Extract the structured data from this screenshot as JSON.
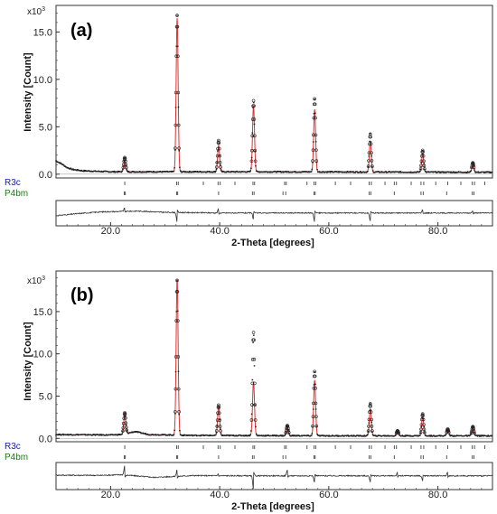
{
  "colors": {
    "observed": "#222222",
    "calculated": "#e03030",
    "R3c": "#1a1aa8",
    "P4bm": "#1a7a1a",
    "axis": "#333333"
  },
  "chart_data": [
    {
      "type": "line",
      "panel_label": "(a)",
      "xlabel": "2-Theta [degrees]",
      "ylabel": "Intensity [Count]",
      "y_multiplier": "x10^3",
      "y_multiplier_base": "x10",
      "y_multiplier_exp": "3",
      "xlim": [
        10,
        90
      ],
      "ylim": [
        -0.4,
        17.8
      ],
      "x_ticks": [
        "20.0",
        "40.0",
        "60.0",
        "80.0"
      ],
      "y_ticks": [
        "0.0",
        "5.0",
        "10.0",
        "15.0"
      ],
      "phases": [
        "R3c",
        "P4bm"
      ],
      "background": [
        [
          10,
          1.4
        ],
        [
          11,
          1.1
        ],
        [
          12,
          0.7
        ],
        [
          13,
          0.5
        ],
        [
          15,
          0.35
        ],
        [
          20,
          0.25
        ],
        [
          30,
          0.25
        ],
        [
          50,
          0.25
        ],
        [
          90,
          0.2
        ]
      ],
      "peaks": [
        {
          "x": 22.6,
          "calc": 1.2,
          "obs": 1.5
        },
        {
          "x": 32.2,
          "calc": 16.2,
          "obs": 16.5
        },
        {
          "x": 39.8,
          "calc": 2.8,
          "obs": 3.3
        },
        {
          "x": 46.2,
          "calc": 7.0,
          "obs": 7.5
        },
        {
          "x": 57.4,
          "calc": 6.6,
          "obs": 7.7
        },
        {
          "x": 67.6,
          "calc": 3.2,
          "obs": 4.0
        },
        {
          "x": 77.2,
          "calc": 2.0,
          "obs": 2.3
        },
        {
          "x": 86.4,
          "calc": 0.8,
          "obs": 1.0
        }
      ],
      "reflections": {
        "R3c": [
          22.6,
          32.1,
          32.4,
          37.0,
          39.7,
          40.1,
          42.8,
          46.1,
          46.4,
          51.9,
          52.2,
          56.0,
          57.3,
          57.6,
          61.2,
          64.0,
          67.4,
          67.8,
          70.3,
          72.0,
          72.4,
          75.1,
          76.9,
          77.4,
          79.6,
          81.8,
          84.2,
          86.3,
          86.7,
          88.6
        ],
        "P4bm": [
          22.5,
          22.7,
          32.1,
          32.3,
          39.8,
          46.0,
          46.3,
          51.6,
          52.1,
          57.3,
          57.5,
          67.4,
          67.7,
          72.0,
          76.9,
          77.3,
          81.6,
          86.3,
          86.6
        ]
      },
      "difference": {
        "baseline": [
          [
            10,
            -0.6
          ],
          [
            14,
            -0.1
          ],
          [
            18,
            0.3
          ],
          [
            25,
            0.5
          ],
          [
            30,
            0.2
          ],
          [
            40,
            0.05
          ],
          [
            90,
            0.05
          ]
        ],
        "spikes": [
          {
            "x": 22.6,
            "amp": 0.7
          },
          {
            "x": 32.2,
            "amp": -1.8
          },
          {
            "x": 39.8,
            "amp": 0.8
          },
          {
            "x": 46.2,
            "amp": -1.2
          },
          {
            "x": 57.4,
            "amp": -1.6
          },
          {
            "x": 67.6,
            "amp": -1.4
          },
          {
            "x": 77.2,
            "amp": 0.6
          },
          {
            "x": 86.4,
            "amp": 0.4
          }
        ]
      }
    },
    {
      "type": "line",
      "panel_label": "(b)",
      "xlabel": "2-Theta [degrees]",
      "ylabel": "Intensity [Count]",
      "y_multiplier": "x10^3",
      "y_multiplier_base": "x10",
      "y_multiplier_exp": "3",
      "xlim": [
        10,
        90
      ],
      "ylim": [
        -0.4,
        19.8
      ],
      "x_ticks": [
        "20.0",
        "40.0",
        "60.0",
        "80.0"
      ],
      "y_ticks": [
        "0.0",
        "5.0",
        "10.0",
        "15.0"
      ],
      "phases": [
        "R3c",
        "P4bm"
      ],
      "background": [
        [
          10,
          0.45
        ],
        [
          20,
          0.4
        ],
        [
          22,
          0.45
        ],
        [
          24.5,
          0.8
        ],
        [
          27,
          0.45
        ],
        [
          35,
          0.35
        ],
        [
          60,
          0.3
        ],
        [
          90,
          0.3
        ]
      ],
      "peaks": [
        {
          "x": 22.6,
          "calc": 2.4,
          "obs": 2.5
        },
        {
          "x": 32.2,
          "calc": 18.5,
          "obs": 18.3
        },
        {
          "x": 39.8,
          "calc": 3.5,
          "obs": 3.6
        },
        {
          "x": 46.2,
          "calc": 6.4,
          "obs": 12.2
        },
        {
          "x": 52.4,
          "calc": 1.1,
          "obs": 1.2
        },
        {
          "x": 57.4,
          "calc": 6.6,
          "obs": 7.6
        },
        {
          "x": 67.6,
          "calc": 3.2,
          "obs": 3.8
        },
        {
          "x": 72.6,
          "calc": 0.5,
          "obs": 0.6
        },
        {
          "x": 77.2,
          "calc": 2.4,
          "obs": 2.6
        },
        {
          "x": 81.8,
          "calc": 0.7,
          "obs": 0.8
        },
        {
          "x": 86.4,
          "calc": 1.1,
          "obs": 1.1
        }
      ],
      "reflections": {
        "R3c": [
          22.6,
          32.1,
          32.4,
          37.0,
          39.7,
          40.1,
          42.8,
          46.1,
          46.4,
          51.9,
          52.2,
          56.0,
          57.3,
          57.6,
          61.2,
          64.0,
          67.4,
          67.8,
          70.3,
          72.0,
          72.4,
          75.1,
          76.9,
          77.4,
          79.6,
          81.8,
          84.2,
          86.3,
          86.7,
          88.6
        ],
        "P4bm": [
          22.5,
          22.7,
          32.1,
          32.3,
          39.8,
          46.0,
          46.3,
          51.6,
          52.1,
          57.3,
          57.5,
          67.4,
          67.7,
          72.0,
          76.9,
          77.3,
          81.6,
          86.3,
          86.6
        ]
      },
      "difference": {
        "baseline": [
          [
            10,
            0.2
          ],
          [
            18,
            0.15
          ],
          [
            22,
            0.3
          ],
          [
            28,
            -0.3
          ],
          [
            35,
            0.1
          ],
          [
            45,
            0.05
          ],
          [
            90,
            0.05
          ]
        ],
        "spikes": [
          {
            "x": 22.6,
            "amp": 1.6
          },
          {
            "x": 32.2,
            "amp": 1.2
          },
          {
            "x": 39.8,
            "amp": 0.4
          },
          {
            "x": 46.2,
            "amp": -2.4
          },
          {
            "x": 52.4,
            "amp": 1.0
          },
          {
            "x": 57.4,
            "amp": -1.2
          },
          {
            "x": 67.6,
            "amp": -1.0
          },
          {
            "x": 72.6,
            "amp": 0.6
          },
          {
            "x": 77.2,
            "amp": -0.8
          },
          {
            "x": 81.8,
            "amp": 0.7
          }
        ]
      }
    }
  ]
}
